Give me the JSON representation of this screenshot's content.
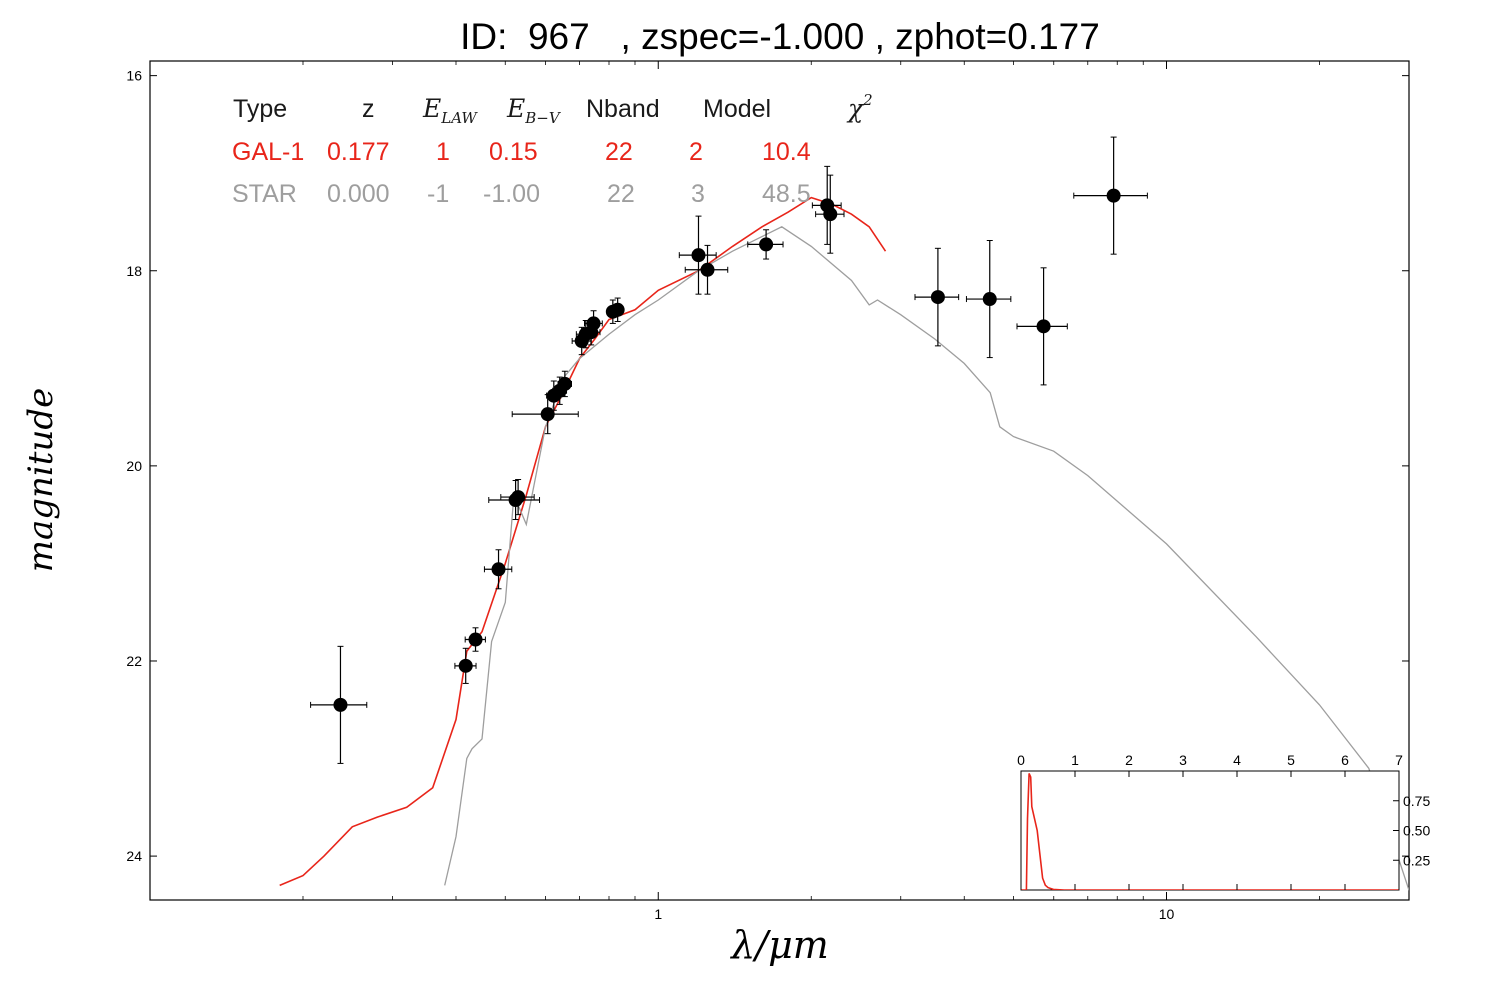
{
  "title": "ID:  967   , zspec=-1.000 , zphot=0.177",
  "colors": {
    "galaxy": "#e8251a",
    "star": "#9e9e9e",
    "points": "#000000"
  },
  "table": {
    "headers": [
      "Type",
      "z",
      "E_LAW",
      "E_B-V",
      "Nband",
      "Model",
      "χ²"
    ],
    "rows": [
      {
        "name": "galaxy",
        "cells": [
          "GAL-1",
          "0.177",
          "1",
          "0.15",
          "22",
          "2",
          "10.4"
        ]
      },
      {
        "name": "star",
        "cells": [
          "STAR",
          "0.000",
          "-1",
          "-1.00",
          "22",
          "3",
          "48.5"
        ]
      }
    ]
  },
  "chart_data": [
    {
      "type": "scatter",
      "xlabel": "λ/μm",
      "ylabel": "magnitude",
      "xscale": "log",
      "xlim": [
        0.1,
        30
      ],
      "ylim": [
        24.45,
        15.85
      ],
      "yaxis_inverted": true,
      "yticks": [
        16,
        18,
        20,
        22,
        24
      ],
      "xticks": [
        1,
        10
      ],
      "grid": false,
      "points": [
        {
          "x": 0.237,
          "y": 22.45,
          "xerr": 0.03,
          "yerr": 0.6
        },
        {
          "x": 0.418,
          "y": 22.05,
          "xerr": 0.02,
          "yerr": 0.18
        },
        {
          "x": 0.437,
          "y": 21.78,
          "xerr": 0.02,
          "yerr": 0.12
        },
        {
          "x": 0.485,
          "y": 21.06,
          "xerr": 0.03,
          "yerr": 0.2
        },
        {
          "x": 0.524,
          "y": 20.35,
          "xerr": 0.06,
          "yerr": 0.2
        },
        {
          "x": 0.53,
          "y": 20.32,
          "xerr": 0.04,
          "yerr": 0.18
        },
        {
          "x": 0.606,
          "y": 19.47,
          "xerr": 0.09,
          "yerr": 0.2
        },
        {
          "x": 0.623,
          "y": 19.28,
          "xerr": 0.02,
          "yerr": 0.15
        },
        {
          "x": 0.64,
          "y": 19.23,
          "xerr": 0.02,
          "yerr": 0.14
        },
        {
          "x": 0.655,
          "y": 19.16,
          "xerr": 0.02,
          "yerr": 0.13
        },
        {
          "x": 0.707,
          "y": 18.72,
          "xerr": 0.03,
          "yerr": 0.14
        },
        {
          "x": 0.72,
          "y": 18.65,
          "xerr": 0.03,
          "yerr": 0.14
        },
        {
          "x": 0.738,
          "y": 18.63,
          "xerr": 0.03,
          "yerr": 0.13
        },
        {
          "x": 0.746,
          "y": 18.54,
          "xerr": 0.03,
          "yerr": 0.13
        },
        {
          "x": 0.814,
          "y": 18.42,
          "xerr": 0.02,
          "yerr": 0.12
        },
        {
          "x": 0.832,
          "y": 18.4,
          "xerr": 0.02,
          "yerr": 0.12
        },
        {
          "x": 1.2,
          "y": 17.84,
          "xerr": 0.1,
          "yerr": 0.4
        },
        {
          "x": 1.25,
          "y": 17.99,
          "xerr": 0.12,
          "yerr": 0.25
        },
        {
          "x": 1.63,
          "y": 17.73,
          "xerr": 0.13,
          "yerr": 0.15
        },
        {
          "x": 2.15,
          "y": 17.33,
          "xerr": 0.14,
          "yerr": 0.4
        },
        {
          "x": 2.18,
          "y": 17.42,
          "xerr": 0.14,
          "yerr": 0.4
        },
        {
          "x": 3.55,
          "y": 18.27,
          "xerr": 0.35,
          "yerr": 0.5
        },
        {
          "x": 4.49,
          "y": 18.29,
          "xerr": 0.45,
          "yerr": 0.6
        },
        {
          "x": 5.73,
          "y": 18.57,
          "xerr": 0.65,
          "yerr": 0.6
        },
        {
          "x": 7.87,
          "y": 17.23,
          "xerr": 1.3,
          "yerr": 0.6
        }
      ],
      "series": [
        {
          "color": "#e8251a",
          "x": [
            0.18,
            0.2,
            0.22,
            0.25,
            0.28,
            0.32,
            0.36,
            0.4,
            0.42,
            0.45,
            0.5,
            0.55,
            0.6,
            0.65,
            0.7,
            0.75,
            0.8,
            0.9,
            1.0,
            1.2,
            1.4,
            1.6,
            1.8,
            2.0,
            2.2,
            2.4,
            2.6,
            2.8
          ],
          "y": [
            24.3,
            24.2,
            24.0,
            23.7,
            23.6,
            23.5,
            23.3,
            22.6,
            21.9,
            21.7,
            21.0,
            20.3,
            19.6,
            19.25,
            18.9,
            18.7,
            18.5,
            18.4,
            18.2,
            18.0,
            17.75,
            17.55,
            17.4,
            17.25,
            17.32,
            17.42,
            17.55,
            17.8
          ]
        },
        {
          "color": "#9e9e9e",
          "x": [
            0.38,
            0.4,
            0.42,
            0.43,
            0.45,
            0.47,
            0.5,
            0.52,
            0.55,
            0.6,
            0.65,
            0.7,
            0.8,
            0.9,
            1.0,
            1.2,
            1.4,
            1.6,
            1.75,
            2.0,
            2.4,
            2.6,
            2.7,
            3.0,
            3.5,
            4.0,
            4.5,
            4.7,
            5.0,
            6.0,
            7.0,
            10,
            15,
            20,
            25,
            30
          ],
          "y": [
            24.3,
            23.8,
            23.0,
            22.9,
            22.8,
            21.8,
            21.4,
            20.3,
            20.6,
            19.6,
            19.1,
            18.9,
            18.65,
            18.45,
            18.3,
            18.0,
            17.8,
            17.65,
            17.55,
            17.75,
            18.1,
            18.35,
            18.3,
            18.45,
            18.7,
            18.95,
            19.25,
            19.6,
            19.7,
            19.85,
            20.1,
            20.8,
            21.75,
            22.45,
            23.1,
            24.35
          ]
        }
      ]
    },
    {
      "type": "line",
      "xlim": [
        0,
        7
      ],
      "ylim": [
        0,
        1.0
      ],
      "xticks": [
        0,
        1,
        2,
        3,
        4,
        5,
        6,
        7
      ],
      "yticks": [
        0.25,
        0.5,
        0.75
      ],
      "ytick_labels": [
        "0.25",
        "0.50",
        "0.75"
      ],
      "grid": false,
      "series": [
        {
          "color": "#e8251a",
          "x": [
            0,
            0.1,
            0.12,
            0.15,
            0.18,
            0.2,
            0.25,
            0.3,
            0.35,
            0.4,
            0.45,
            0.5,
            0.6,
            0.8,
            1.0,
            7.0
          ],
          "y": [
            0,
            0,
            0.6,
            0.98,
            0.95,
            0.7,
            0.6,
            0.5,
            0.3,
            0.1,
            0.04,
            0.02,
            0.005,
            0,
            0,
            0
          ]
        }
      ]
    }
  ]
}
